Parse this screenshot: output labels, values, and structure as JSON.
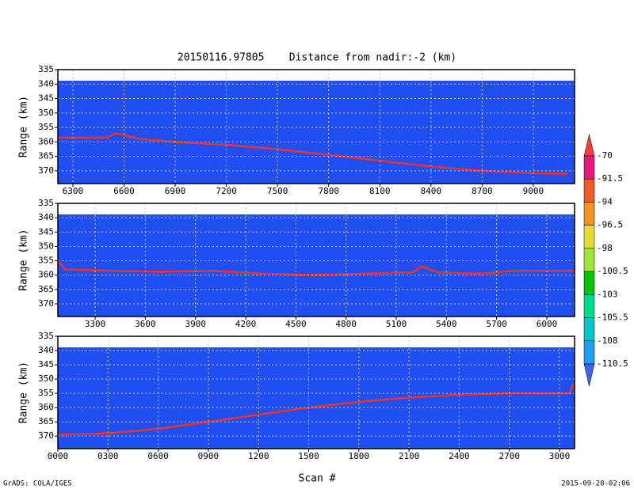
{
  "title": "20150116.97805    Distance from nadir:-2 (km)",
  "x_label": "Scan #",
  "footer_left": "GrADS: COLA/IGES",
  "footer_right": "2015-09-28-02:06",
  "chart_data": [
    {
      "type": "line",
      "ylabel": "Range (km)",
      "background": "#1f4ef2",
      "grid": true,
      "y_reversed": true,
      "xlim": [
        6212,
        9242
      ],
      "ylim": [
        335,
        374.4
      ],
      "xticks": [
        6300,
        6600,
        6900,
        7200,
        7500,
        7800,
        8100,
        8400,
        8700,
        9000
      ],
      "yticks": [
        335,
        340,
        345,
        350,
        355,
        360,
        365,
        370
      ],
      "x": [
        6212,
        6500,
        6550,
        6700,
        6900,
        7200,
        7500,
        7800,
        8100,
        8400,
        8700,
        9000,
        9200
      ],
      "series": [
        {
          "color": "#f03228",
          "values": [
            358.5,
            358.5,
            357,
            359,
            360,
            361,
            362.5,
            364.5,
            366.5,
            368.5,
            370,
            370.8,
            371
          ]
        }
      ]
    },
    {
      "type": "line",
      "ylabel": "Range (km)",
      "background": "#1f4ef2",
      "grid": true,
      "y_reversed": true,
      "xlim": [
        3077,
        6166
      ],
      "ylim": [
        335,
        374.4
      ],
      "xticks": [
        3300,
        3600,
        3900,
        4200,
        4500,
        4800,
        5100,
        5400,
        5700,
        6000
      ],
      "yticks": [
        335,
        340,
        345,
        350,
        355,
        360,
        365,
        370
      ],
      "x": [
        3077,
        3120,
        3400,
        3700,
        4000,
        4300,
        4600,
        4900,
        5200,
        5250,
        5350,
        5600,
        5800,
        6000,
        6166
      ],
      "series": [
        {
          "color": "#f03228",
          "values": [
            355,
            358,
            358.5,
            358.8,
            358.5,
            359.5,
            360,
            359.5,
            359,
            357,
            359,
            359.5,
            358.5,
            358.5,
            358.5
          ]
        }
      ]
    },
    {
      "type": "line",
      "ylabel": "Range (km)",
      "background": "#1f4ef2",
      "grid": true,
      "y_reversed": true,
      "xlim": [
        0,
        3090
      ],
      "ylim": [
        335,
        374.4
      ],
      "xticks": [
        {
          "value": 0,
          "label": "0000"
        },
        {
          "value": 300,
          "label": "0300"
        },
        {
          "value": 600,
          "label": "0600"
        },
        {
          "value": 900,
          "label": "0900"
        },
        1200,
        1500,
        1800,
        2100,
        2400,
        2700,
        3000
      ],
      "yticks": [
        335,
        340,
        345,
        350,
        355,
        360,
        365,
        370
      ],
      "x": [
        0,
        300,
        600,
        900,
        1200,
        1500,
        1800,
        2100,
        2400,
        2700,
        3000,
        3060,
        3090
      ],
      "series": [
        {
          "color": "#f03228",
          "values": [
            369.5,
            369,
            367.5,
            365,
            362.5,
            360,
            358,
            356.5,
            355.5,
            355,
            355,
            355,
            351
          ]
        }
      ]
    }
  ],
  "colorbar": {
    "levels": [
      -70,
      -91.5,
      -94,
      -96.5,
      -98,
      -100.5,
      -103,
      -105.5,
      -108,
      -110.5
    ],
    "colors": [
      "#fa3c3c",
      "#e6197d",
      "#f05a28",
      "#f0961e",
      "#e6dc32",
      "#a0e632",
      "#00c800",
      "#00dc8c",
      "#00c8c8",
      "#1ea0f0",
      "#3c64f0"
    ]
  }
}
